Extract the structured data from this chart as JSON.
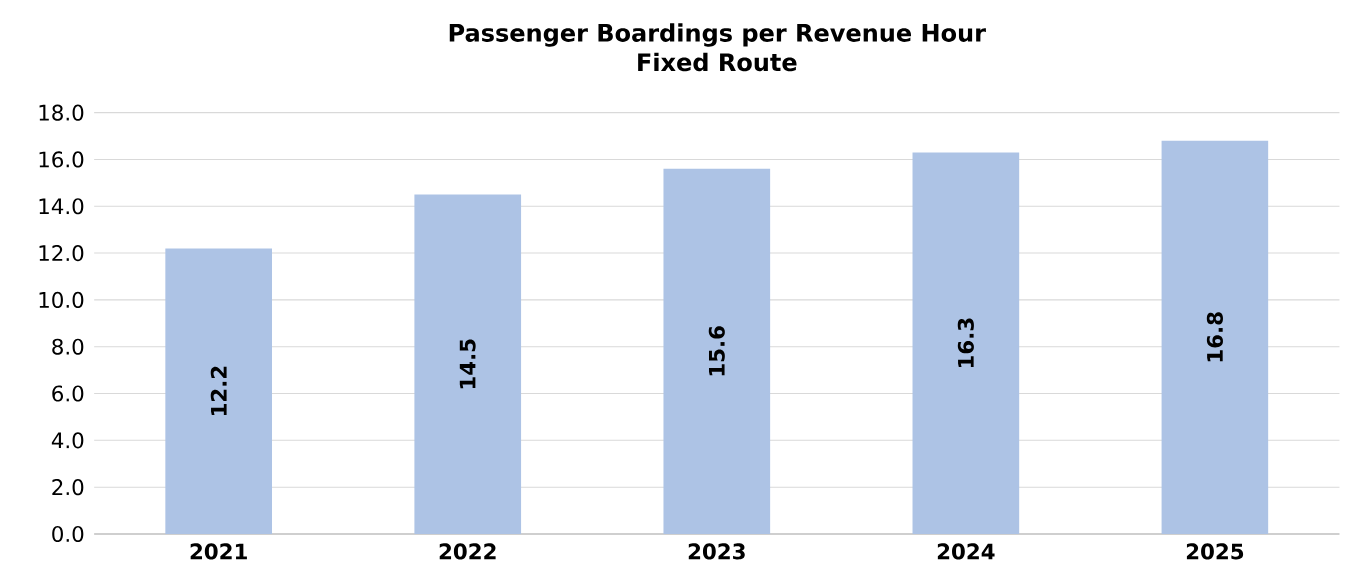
{
  "chart_data": {
    "type": "bar",
    "title": "Passenger Boardings per Revenue Hour",
    "subtitle": "Fixed Route",
    "categories": [
      "2021",
      "2022",
      "2023",
      "2024",
      "2025"
    ],
    "values": [
      12.2,
      14.5,
      15.6,
      16.3,
      16.8
    ],
    "color": "#adc3e5",
    "ylim": [
      0,
      18
    ],
    "yticks": [
      {
        "value": 0,
        "label": "0.0"
      },
      {
        "value": 2,
        "label": "2.0"
      },
      {
        "value": 4,
        "label": "4.0"
      },
      {
        "value": 6,
        "label": "6.0"
      },
      {
        "value": 8,
        "label": "8.0"
      },
      {
        "value": 10,
        "label": "10.0"
      },
      {
        "value": 12,
        "label": "12.0"
      },
      {
        "value": 14,
        "label": "14.0"
      },
      {
        "value": 16,
        "label": "16.0"
      },
      {
        "value": 18,
        "label": "18.0"
      }
    ],
    "grid": "y",
    "data_labels": true
  }
}
